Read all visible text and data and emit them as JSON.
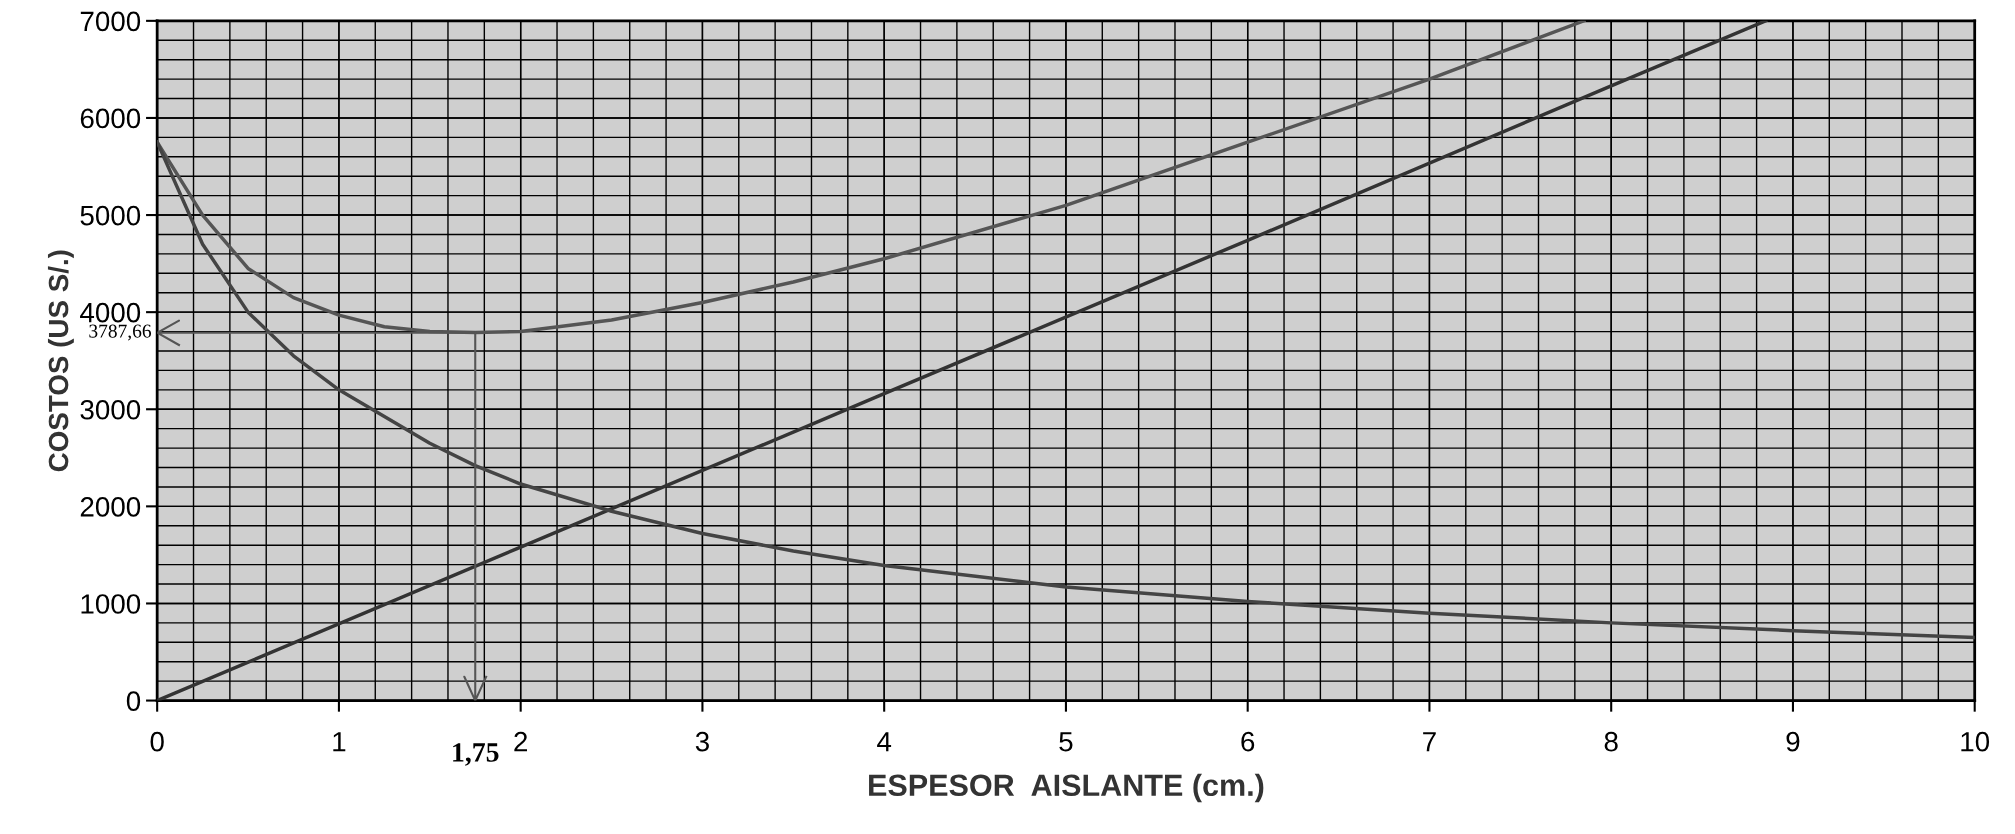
{
  "chart_data": {
    "type": "line",
    "xlabel": "ESPESOR  AISLANTE (cm.)",
    "ylabel": "COSTOS (US S/.)",
    "xlim": [
      0,
      10
    ],
    "xticks": [
      0,
      1,
      2,
      3,
      4,
      5,
      6,
      7,
      8,
      9,
      10
    ],
    "ylim": [
      0,
      7000
    ],
    "yticks": [
      0,
      1000,
      2000,
      3000,
      4000,
      5000,
      6000,
      7000
    ],
    "grid": true,
    "marker": "none",
    "line_style": "solid",
    "series": [
      {
        "color": "#555555",
        "x": [
          0,
          0.25,
          0.5,
          0.75,
          1,
          1.25,
          1.5,
          1.75,
          2,
          2.5,
          3,
          3.5,
          4,
          5,
          6,
          7,
          7.85
        ],
        "values": [
          5750,
          5000,
          4450,
          4150,
          3970,
          3850,
          3800,
          3790,
          3800,
          3920,
          4100,
          4310,
          4550,
          5100,
          5750,
          6400,
          7000
        ]
      },
      {
        "color": "#333333",
        "x": [
          0,
          2,
          4,
          6,
          8,
          8.85
        ],
        "values": [
          0,
          1580,
          3160,
          4740,
          6330,
          7000
        ]
      },
      {
        "color": "#444444",
        "x": [
          0,
          0.25,
          0.5,
          0.75,
          1,
          1.5,
          1.75,
          2,
          2.5,
          3,
          3.5,
          4,
          5,
          6,
          7,
          8,
          9,
          10
        ],
        "values": [
          5750,
          4700,
          4000,
          3550,
          3200,
          2650,
          2420,
          2230,
          1950,
          1720,
          1540,
          1390,
          1170,
          1020,
          900,
          800,
          720,
          650
        ]
      }
    ],
    "ref_lines": [
      {
        "axis": "y",
        "value": 3787.66,
        "label": "3787,66",
        "color": "#555555"
      },
      {
        "axis": "x",
        "value": 1.75,
        "label": "1,75",
        "color": "#555555"
      }
    ]
  }
}
